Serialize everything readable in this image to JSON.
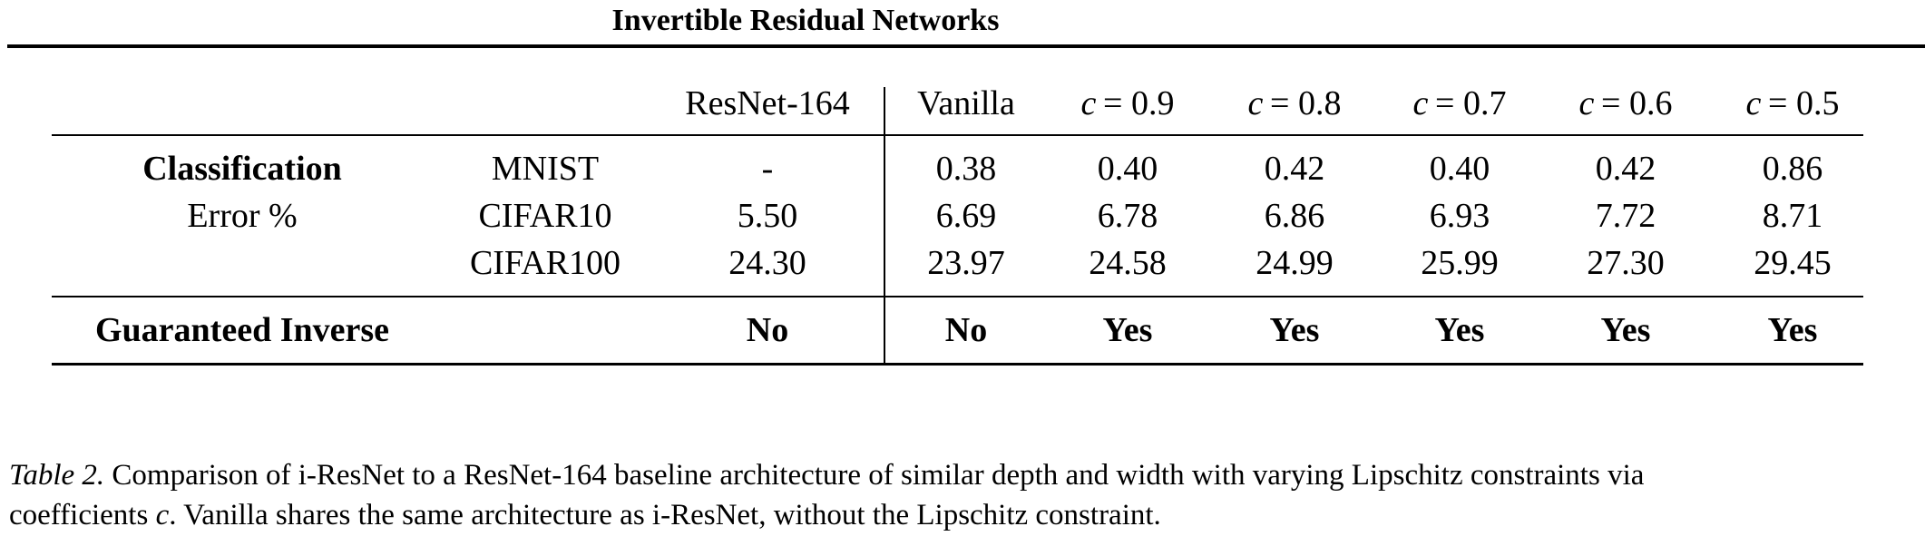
{
  "title": "Invertible Residual Networks",
  "table": {
    "columns": {
      "resnet": "ResNet-164",
      "vanilla": "Vanilla",
      "c_var": "c",
      "c_values": [
        "= 0.9",
        "= 0.8",
        "= 0.7",
        "= 0.6",
        "= 0.5"
      ]
    },
    "group_label_line1": "Classification",
    "group_label_line2": "Error %",
    "rows": [
      {
        "dataset": "MNIST",
        "values": [
          "-",
          "0.38",
          "0.40",
          "0.42",
          "0.40",
          "0.42",
          "0.86"
        ]
      },
      {
        "dataset": "CIFAR10",
        "values": [
          "5.50",
          "6.69",
          "6.78",
          "6.86",
          "6.93",
          "7.72",
          "8.71"
        ]
      },
      {
        "dataset": "CIFAR100",
        "values": [
          "24.30",
          "23.97",
          "24.58",
          "24.99",
          "25.99",
          "27.30",
          "29.45"
        ]
      }
    ],
    "guarantee_row": {
      "label": "Guaranteed Inverse",
      "values": [
        "No",
        "No",
        "Yes",
        "Yes",
        "Yes",
        "Yes",
        "Yes"
      ]
    }
  },
  "caption": {
    "label": "Table 2.",
    "line1_text": " Comparison of i-ResNet to a ResNet-164 baseline architecture of similar depth and width with varying Lipschitz constraints via",
    "line2_pre": "coefficients ",
    "line2_var": "c",
    "line2_post": ". Vanilla shares the same architecture as i-ResNet, without the Lipschitz constraint."
  }
}
